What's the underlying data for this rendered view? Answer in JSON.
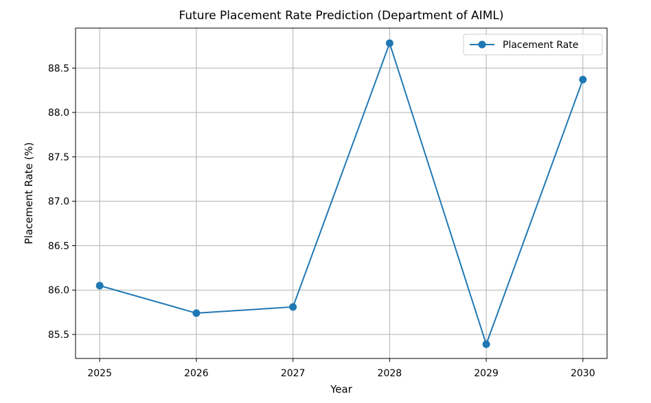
{
  "chart_data": {
    "type": "line",
    "title": "Future Placement Rate Prediction (Department of AIML)",
    "xlabel": "Year",
    "ylabel": "Placement Rate (%)",
    "x": [
      2025,
      2026,
      2027,
      2028,
      2029,
      2030
    ],
    "x_tick_labels": [
      "2025",
      "2026",
      "2027",
      "2028",
      "2029",
      "2030"
    ],
    "y_ticks": [
      85.5,
      86.0,
      86.5,
      87.0,
      87.5,
      88.0,
      88.5
    ],
    "y_tick_labels": [
      "85.5",
      "86.0",
      "86.5",
      "87.0",
      "87.5",
      "88.0",
      "88.5"
    ],
    "xlim": [
      2024.75,
      2030.25
    ],
    "ylim": [
      85.23,
      88.95
    ],
    "series": [
      {
        "name": "Placement Rate",
        "values": [
          86.05,
          85.74,
          85.81,
          88.78,
          85.39,
          88.37
        ],
        "color": "#1f77b4",
        "marker": "circle"
      }
    ],
    "grid": true,
    "legend": "top-right"
  }
}
